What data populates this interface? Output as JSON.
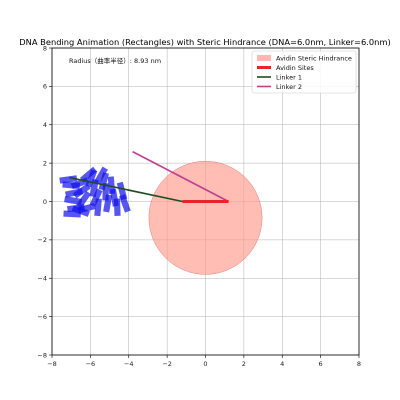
{
  "chart_data": {
    "type": "scatter",
    "title": "DNA Bending Animation (Rectangles) with Steric Hindrance (DNA=6.0nm, Linker=6.0nm)",
    "xlabel": "",
    "ylabel": "",
    "xlim": [
      -8,
      8
    ],
    "ylim": [
      -8,
      8
    ],
    "grid": true,
    "x_ticks": [
      "−8",
      "−6",
      "−4",
      "−2",
      "0",
      "2",
      "4",
      "6",
      "8"
    ],
    "y_ticks": [
      "−8",
      "−6",
      "−4",
      "−2",
      "0",
      "2",
      "4",
      "6",
      "8"
    ],
    "annotation": "Radius（曲率半径）: 8.93 nm",
    "legend_position": "top-right",
    "series": [
      {
        "name": "Avidin Steric Hindrance",
        "kind": "circle",
        "center": [
          0,
          -0.85
        ],
        "radius": 2.95,
        "color": "#ff9a8c"
      },
      {
        "name": "Avidin Sites",
        "kind": "line",
        "x": [
          -1.2,
          1.2
        ],
        "y": [
          0,
          0
        ],
        "color": "#e8242a"
      },
      {
        "name": "Linker 1",
        "kind": "line",
        "x": [
          -1.2,
          -7.1
        ],
        "y": [
          0,
          1.25
        ],
        "color": "#1f4d1f"
      },
      {
        "name": "Linker 2",
        "kind": "line",
        "x": [
          1.2,
          -3.8
        ],
        "y": [
          0,
          2.6
        ],
        "color": "#c0408f"
      },
      {
        "name": "DNA rectangles",
        "kind": "rects",
        "color": "#1010e8",
        "width": 0.9,
        "height": 0.32,
        "rects": [
          {
            "cx": -7.15,
            "cy": 1.15,
            "angle": 8
          },
          {
            "cx": -7.0,
            "cy": 0.85,
            "angle": -5
          },
          {
            "cx": -6.85,
            "cy": 0.45,
            "angle": 12
          },
          {
            "cx": -6.9,
            "cy": 0.05,
            "angle": -10
          },
          {
            "cx": -6.75,
            "cy": -0.35,
            "angle": 6
          },
          {
            "cx": -6.95,
            "cy": -0.65,
            "angle": -3
          },
          {
            "cx": -6.55,
            "cy": 0.95,
            "angle": 20
          },
          {
            "cx": -6.45,
            "cy": 0.55,
            "angle": 35
          },
          {
            "cx": -6.35,
            "cy": 0.1,
            "angle": 55
          },
          {
            "cx": -6.2,
            "cy": -0.35,
            "angle": 15
          },
          {
            "cx": -6.5,
            "cy": -0.5,
            "angle": -20
          },
          {
            "cx": -5.95,
            "cy": 1.2,
            "angle": 70
          },
          {
            "cx": -5.8,
            "cy": 0.7,
            "angle": 80
          },
          {
            "cx": -5.7,
            "cy": 0.2,
            "angle": 65
          },
          {
            "cx": -5.6,
            "cy": -0.3,
            "angle": 85
          },
          {
            "cx": -5.3,
            "cy": 1.05,
            "angle": 75
          },
          {
            "cx": -5.2,
            "cy": 0.5,
            "angle": 88
          },
          {
            "cx": -5.1,
            "cy": -0.1,
            "angle": 80
          },
          {
            "cx": -4.9,
            "cy": 0.85,
            "angle": 95
          },
          {
            "cx": -4.75,
            "cy": 0.2,
            "angle": 100
          },
          {
            "cx": -4.6,
            "cy": -0.3,
            "angle": 92
          },
          {
            "cx": -4.35,
            "cy": 0.55,
            "angle": 105
          },
          {
            "cx": -4.2,
            "cy": -0.1,
            "angle": 110
          },
          {
            "cx": -5.45,
            "cy": 1.35,
            "angle": 60
          },
          {
            "cx": -6.1,
            "cy": 1.4,
            "angle": 40
          }
        ]
      }
    ]
  }
}
